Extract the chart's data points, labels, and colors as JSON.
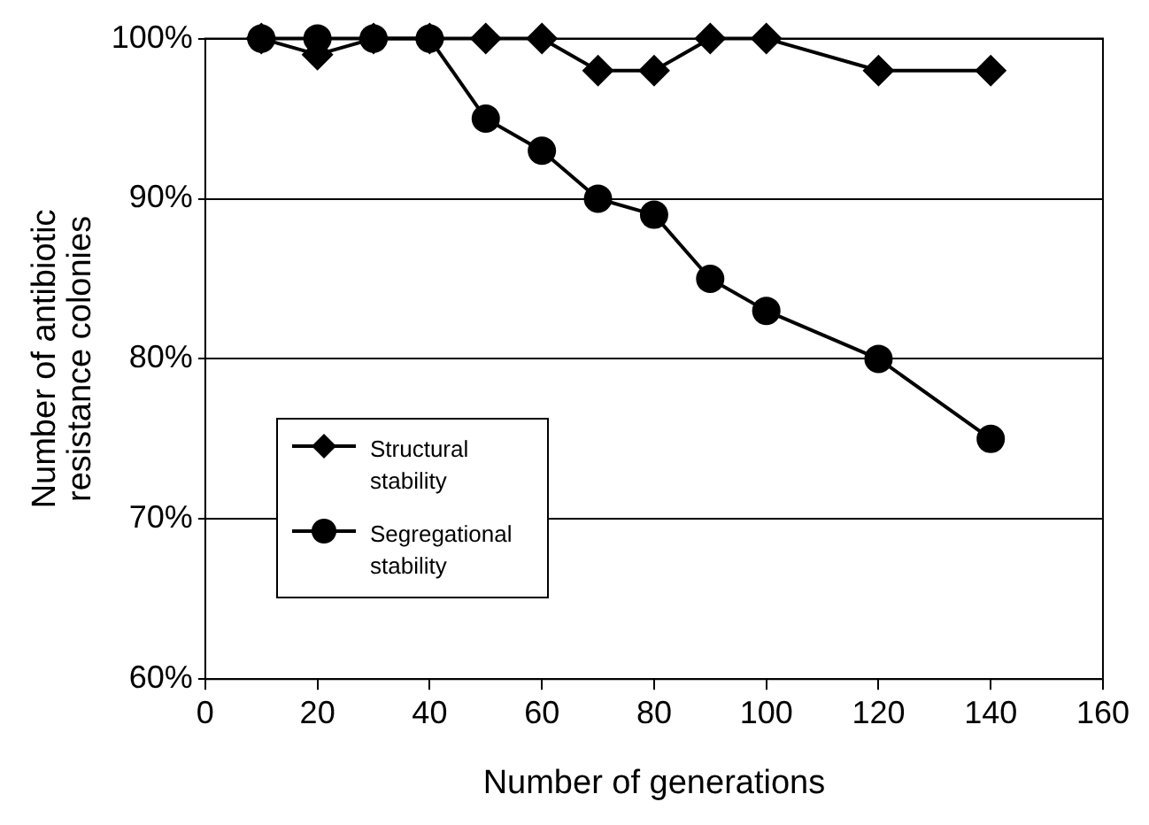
{
  "chart_data": {
    "type": "line",
    "xlabel": "Number of generations",
    "ylabel": "Number of antibiotic resistance colonies",
    "x": [
      10,
      20,
      30,
      40,
      50,
      60,
      70,
      80,
      90,
      100,
      120,
      140
    ],
    "series": [
      {
        "name": "Structural stability",
        "color": "#000000",
        "marker": "diamond",
        "values": [
          100,
          99,
          100,
          100,
          100,
          100,
          98,
          98,
          100,
          100,
          98,
          98
        ]
      },
      {
        "name": "Segregational stability",
        "color": "#000000",
        "marker": "circle",
        "values": [
          100,
          100,
          100,
          100,
          95,
          93,
          90,
          89,
          85,
          83,
          80,
          75
        ]
      }
    ],
    "xlim": [
      0,
      160
    ],
    "xticks": [
      0,
      20,
      40,
      60,
      80,
      100,
      120,
      140,
      160
    ],
    "ylim": [
      60,
      100
    ],
    "yticks": [
      {
        "value": 60,
        "label": "60%"
      },
      {
        "value": 70,
        "label": "70%"
      },
      {
        "value": 80,
        "label": "80%"
      },
      {
        "value": 90,
        "label": "90%"
      },
      {
        "value": 100,
        "label": "100%"
      }
    ],
    "grid": "y",
    "legend": "bottom left",
    "line_style": "solid"
  }
}
